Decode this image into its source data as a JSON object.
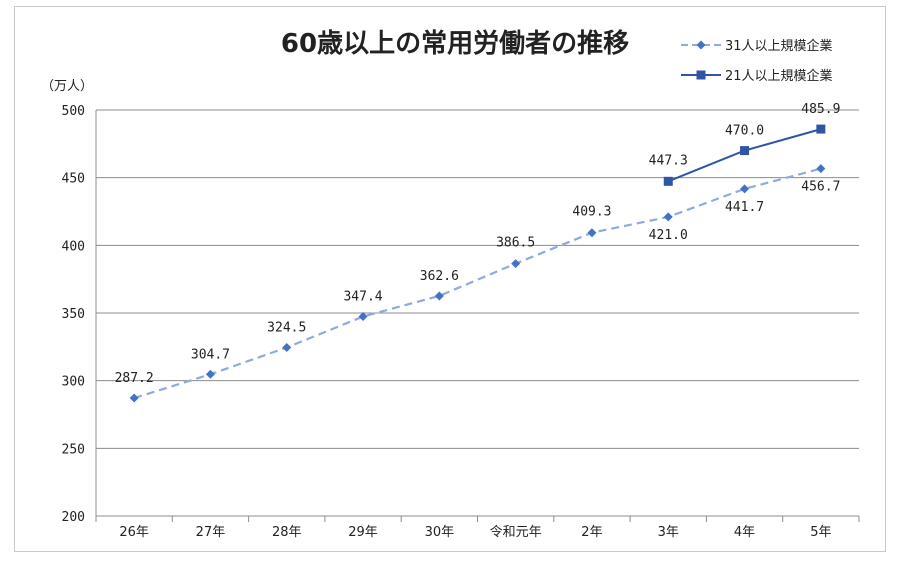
{
  "chart_data": {
    "type": "line",
    "title": "60歳以上の常用労働者の推移",
    "ylabel": "（万人）",
    "xlabel": "",
    "ylim": [
      200,
      500
    ],
    "yticks": [
      200,
      250,
      300,
      350,
      400,
      450,
      500
    ],
    "grid": true,
    "legend": "top-right",
    "categories": [
      "26年",
      "27年",
      "28年",
      "29年",
      "30年",
      "令和元年",
      "2年",
      "3年",
      "4年",
      "5年"
    ],
    "series": [
      {
        "name": "31人以上規模企業",
        "values": [
          287.2,
          304.7,
          324.5,
          347.4,
          362.6,
          386.5,
          409.3,
          421.0,
          441.7,
          456.7
        ],
        "labels": [
          "287.2",
          "304.7",
          "324.5",
          "347.4",
          "362.6",
          "386.5",
          "409.3",
          "421.0",
          "441.7",
          "456.7"
        ],
        "color": "#8eabdc",
        "marker_color": "#4472c4",
        "style": "dashed",
        "marker": "diamond"
      },
      {
        "name": "21人以上規模企業",
        "values": [
          null,
          null,
          null,
          null,
          null,
          null,
          null,
          447.3,
          470.0,
          485.9
        ],
        "labels": [
          null,
          null,
          null,
          null,
          null,
          null,
          null,
          "447.3",
          "470.0",
          "485.9"
        ],
        "color": "#2f55a4",
        "marker_color": "#2f55a4",
        "style": "solid",
        "marker": "square"
      }
    ]
  }
}
